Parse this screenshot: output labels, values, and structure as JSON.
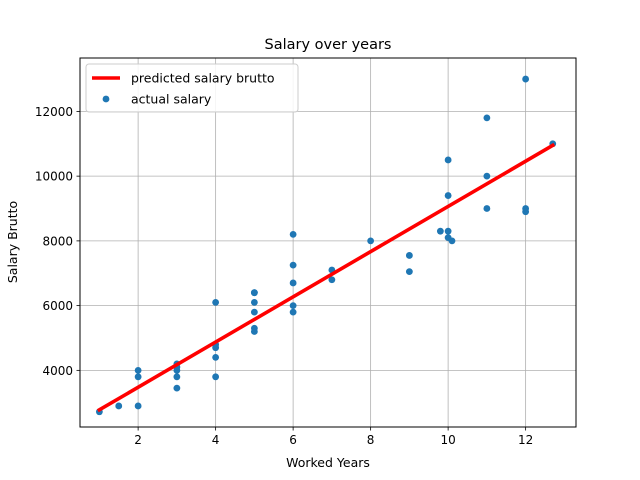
{
  "chart_data": {
    "type": "scatter",
    "title": "Salary over years",
    "xlabel": "Worked Years",
    "ylabel": "Salary Brutto",
    "xlim": [
      0.5,
      13.3
    ],
    "ylim": [
      2250,
      13650
    ],
    "xticks": [
      2,
      4,
      6,
      8,
      10,
      12
    ],
    "yticks": [
      4000,
      6000,
      8000,
      10000,
      12000
    ],
    "grid": true,
    "legend_position": "top-left",
    "series": [
      {
        "name": "predicted salary brutto",
        "kind": "line",
        "color": "#ff0000",
        "x": [
          1,
          12.7
        ],
        "y": [
          2780,
          10950
        ]
      },
      {
        "name": "actual salary",
        "kind": "scatter",
        "color": "#1f77b4",
        "x": [
          1,
          1.5,
          2,
          2,
          2,
          3,
          3,
          3,
          3,
          3,
          4,
          4,
          4,
          4,
          4,
          5,
          5,
          5,
          5,
          5,
          5,
          6,
          6,
          6,
          6,
          6,
          7,
          7,
          8,
          9,
          9,
          9.8,
          10,
          10,
          10,
          10,
          10.1,
          11,
          11,
          11,
          12,
          12,
          12,
          12.7
        ],
        "y": [
          2720,
          2900,
          2900,
          3800,
          4000,
          3450,
          3800,
          4000,
          4100,
          4200,
          3800,
          4400,
          4700,
          4800,
          6100,
          5200,
          5300,
          5800,
          6100,
          6400,
          6400,
          5800,
          6000,
          6700,
          7250,
          8200,
          6800,
          7100,
          8000,
          7050,
          7550,
          8300,
          8100,
          8300,
          9400,
          10500,
          8000,
          9000,
          10000,
          11800,
          8900,
          9000,
          13000,
          11000
        ]
      }
    ]
  }
}
